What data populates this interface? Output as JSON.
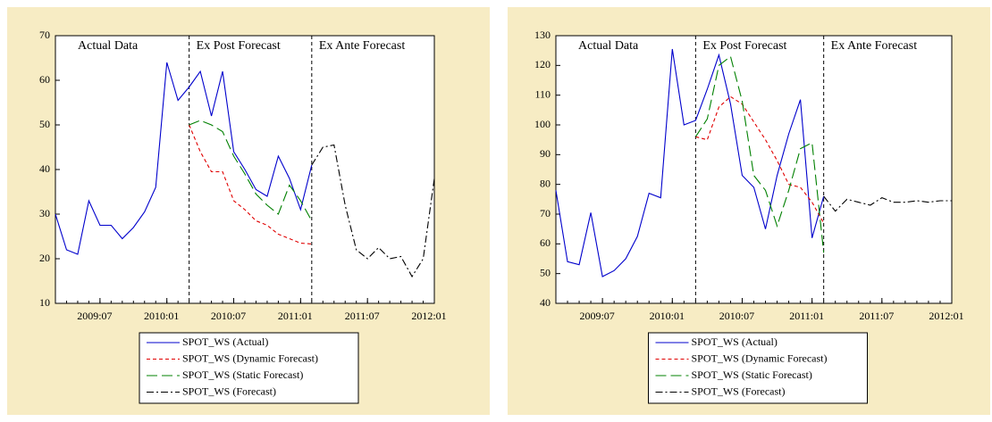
{
  "chart_data": [
    {
      "type": "line",
      "categories": [
        null,
        null,
        null,
        null,
        "2009:07",
        null,
        null,
        null,
        null,
        null,
        "2010:01",
        null,
        null,
        null,
        null,
        null,
        "2010:07",
        null,
        null,
        null,
        null,
        null,
        "2011:01",
        null,
        null,
        null,
        null,
        null,
        "2011:07",
        null,
        null,
        null,
        null,
        null,
        "2012:01"
      ],
      "ylim": [
        10,
        70
      ],
      "yticks": [
        10,
        20,
        30,
        40,
        50,
        60,
        70
      ],
      "section_starts": [
        12,
        23
      ],
      "sections": [
        "Actual Data",
        "Ex Post Forecast",
        "Ex Ante Forecast"
      ],
      "legend": "bottom",
      "series": [
        {
          "name": "SPOT_WS (Actual)",
          "color": "#0000cc",
          "dash": "none",
          "values": [
            30,
            22,
            21,
            33,
            27.5,
            27.5,
            24.5,
            27,
            30.5,
            36,
            64,
            55.5,
            58.5,
            62,
            52,
            62,
            44,
            40,
            35.5,
            34,
            43,
            38,
            31,
            41,
            null,
            null,
            null,
            null,
            null,
            null,
            null,
            null,
            null,
            null,
            null
          ]
        },
        {
          "name": "SPOT_WS (Dynamic Forecast)",
          "color": "#e00000",
          "dash": "4,3",
          "values": [
            null,
            null,
            null,
            null,
            null,
            null,
            null,
            null,
            null,
            null,
            null,
            null,
            50,
            44,
            39.5,
            39.5,
            33,
            31,
            28.5,
            27.5,
            25.5,
            24.5,
            23.5,
            23.3,
            null,
            null,
            null,
            null,
            null,
            null,
            null,
            null,
            null,
            null,
            null
          ]
        },
        {
          "name": "SPOT_WS (Static Forecast)",
          "color": "#008000",
          "dash": "12,5",
          "values": [
            null,
            null,
            null,
            null,
            null,
            null,
            null,
            null,
            null,
            null,
            null,
            null,
            50,
            51,
            50,
            48.5,
            43,
            39,
            34.5,
            32,
            30,
            36.5,
            33,
            28.5,
            null,
            null,
            null,
            null,
            null,
            null,
            null,
            null,
            null,
            null,
            null
          ]
        },
        {
          "name": "SPOT_WS (Forecast)",
          "color": "#000000",
          "dash": "8,3,2,3",
          "values": [
            null,
            null,
            null,
            null,
            null,
            null,
            null,
            null,
            null,
            null,
            null,
            null,
            null,
            null,
            null,
            null,
            null,
            null,
            null,
            null,
            null,
            null,
            null,
            41,
            45,
            45.5,
            32,
            22,
            20,
            22.5,
            20,
            20.5,
            16,
            20,
            38
          ]
        }
      ]
    },
    {
      "type": "line",
      "categories": [
        null,
        null,
        null,
        null,
        "2009:07",
        null,
        null,
        null,
        null,
        null,
        "2010:01",
        null,
        null,
        null,
        null,
        null,
        "2010:07",
        null,
        null,
        null,
        null,
        null,
        "2011:01",
        null,
        null,
        null,
        null,
        null,
        "2011:07",
        null,
        null,
        null,
        null,
        null,
        "2012:01"
      ],
      "ylim": [
        40,
        130
      ],
      "yticks": [
        40,
        50,
        60,
        70,
        80,
        90,
        100,
        110,
        120,
        130
      ],
      "section_starts": [
        12,
        23
      ],
      "sections": [
        "Actual Data",
        "Ex Post Forecast",
        "Ex Ante Forecast"
      ],
      "legend": "bottom",
      "series": [
        {
          "name": "SPOT_WS (Actual)",
          "color": "#0000cc",
          "dash": "none",
          "values": [
            78,
            54,
            53,
            70.5,
            49,
            51,
            55,
            62.5,
            77,
            75.5,
            125.5,
            100,
            101.5,
            112,
            123.5,
            107,
            83,
            79,
            65,
            83,
            97,
            108.5,
            62,
            76,
            null,
            null,
            null,
            null,
            null,
            null,
            null,
            null,
            null,
            null,
            null
          ]
        },
        {
          "name": "SPOT_WS (Dynamic Forecast)",
          "color": "#e00000",
          "dash": "4,3",
          "values": [
            null,
            null,
            null,
            null,
            null,
            null,
            null,
            null,
            null,
            null,
            null,
            null,
            96,
            95,
            106,
            109.5,
            107,
            101,
            95,
            88,
            80,
            79,
            74,
            67,
            null,
            null,
            null,
            null,
            null,
            null,
            null,
            null,
            null,
            null,
            null
          ]
        },
        {
          "name": "SPOT_WS (Static Forecast)",
          "color": "#008000",
          "dash": "12,5",
          "values": [
            null,
            null,
            null,
            null,
            null,
            null,
            null,
            null,
            null,
            null,
            null,
            null,
            96,
            102,
            120,
            123,
            108,
            83,
            78,
            66,
            78,
            92,
            94,
            57,
            null,
            null,
            null,
            null,
            null,
            null,
            null,
            null,
            null,
            null,
            null
          ]
        },
        {
          "name": "SPOT_WS (Forecast)",
          "color": "#000000",
          "dash": "8,3,2,3",
          "values": [
            null,
            null,
            null,
            null,
            null,
            null,
            null,
            null,
            null,
            null,
            null,
            null,
            null,
            null,
            null,
            null,
            null,
            null,
            null,
            null,
            null,
            null,
            null,
            76,
            71,
            75,
            74,
            73,
            75.5,
            74,
            74,
            74.5,
            74,
            74.5,
            74.5
          ]
        }
      ]
    }
  ]
}
